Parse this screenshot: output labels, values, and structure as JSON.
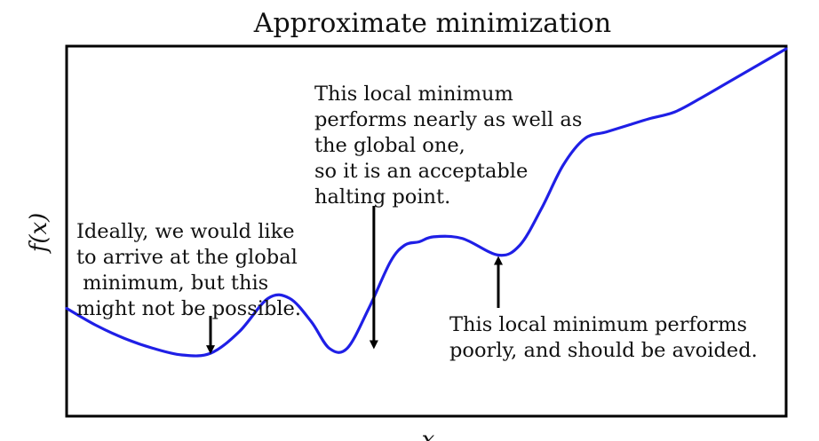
{
  "chart_data": {
    "type": "line",
    "title": "Approximate minimization",
    "xlabel": "x",
    "ylabel": "f(x)",
    "xlim": [
      0,
      1
    ],
    "ylim": [
      0,
      1
    ],
    "grid": false,
    "series": [
      {
        "color": "#1f1fe6",
        "x": [
          0,
          0.04,
          0.08,
          0.12,
          0.16,
          0.2,
          0.24,
          0.28,
          0.31,
          0.34,
          0.365,
          0.39,
          0.42,
          0.45,
          0.47,
          0.49,
          0.51,
          0.55,
          0.6,
          0.63,
          0.66,
          0.69,
          0.72,
          0.75,
          0.78,
          0.81,
          0.845,
          0.88,
          0.92,
          0.96,
          1.0
        ],
        "y": [
          0.22,
          0.17,
          0.13,
          0.1,
          0.08,
          0.085,
          0.15,
          0.25,
          0.25,
          0.18,
          0.1,
          0.1,
          0.22,
          0.36,
          0.41,
          0.42,
          0.435,
          0.43,
          0.38,
          0.41,
          0.52,
          0.65,
          0.73,
          0.75,
          0.77,
          0.79,
          0.81,
          0.85,
          0.9,
          0.95,
          1.0
        ]
      }
    ],
    "annotations": [
      {
        "id": "global",
        "lines": [
          "Ideally, we would like",
          "to arrive at the global",
          " minimum, but this",
          "might not be possible."
        ],
        "point": [
          0.2,
          0.085
        ]
      },
      {
        "id": "good-local",
        "lines": [
          "This local minimum",
          "performs nearly as well as",
          "the global one,",
          "so it is an acceptable",
          "halting point."
        ],
        "point": [
          0.427,
          0.1
        ]
      },
      {
        "id": "bad-local",
        "lines": [
          "This local minimum performs",
          "poorly, and should be avoided."
        ],
        "point": [
          0.6,
          0.38
        ]
      }
    ]
  }
}
